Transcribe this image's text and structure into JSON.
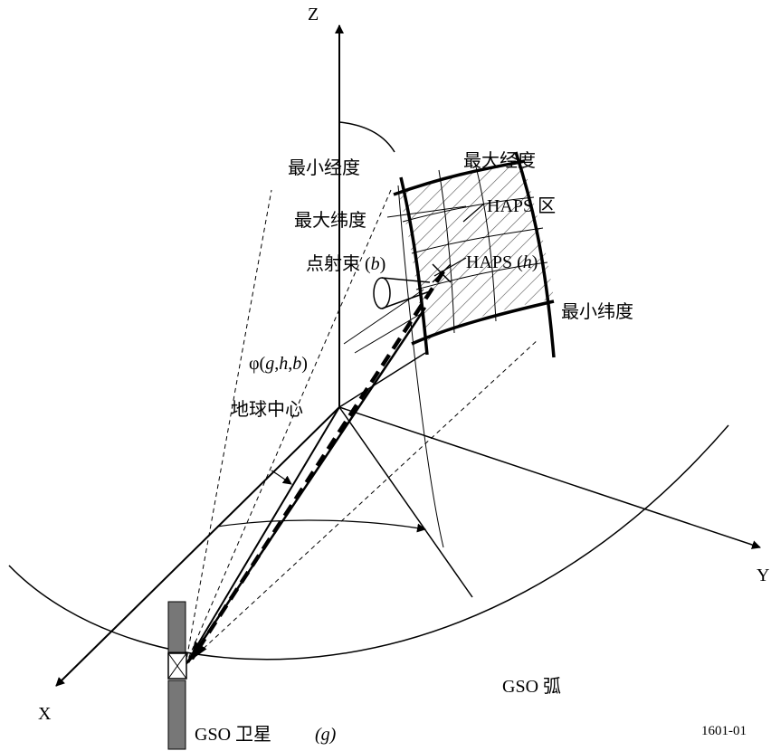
{
  "labels": {
    "z_axis": "Z",
    "min_longitude": "最小经度",
    "max_longitude": "最大经度",
    "max_latitude": "最大纬度",
    "haps_zone": "HAPS 区",
    "spot_beam": [
      "点射束 (",
      "b",
      ")"
    ],
    "haps": [
      "HAPS (",
      "h",
      ")"
    ],
    "min_latitude": "最小纬度",
    "angle": [
      "φ(",
      "g",
      ",",
      "h",
      ",",
      "b",
      ")"
    ],
    "earth_center": "地球中心",
    "y_axis": "Y",
    "x_axis": "X",
    "gso_arc": "GSO 弧",
    "gso_satellite": "GSO 卫星",
    "gso_symbol": "(g)",
    "figure_id": "1601-01"
  }
}
